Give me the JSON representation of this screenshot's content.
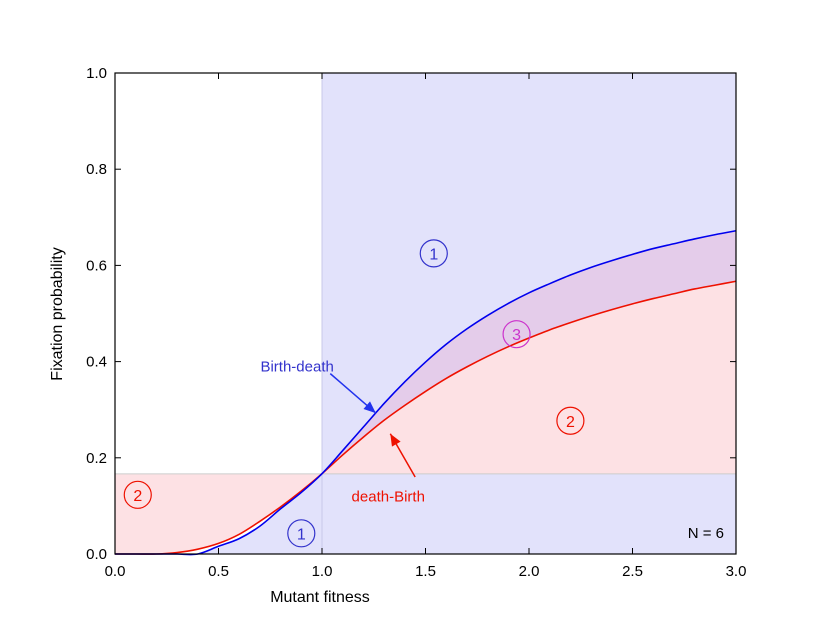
{
  "chart_data": {
    "type": "line",
    "title": "",
    "xlabel": "Mutant fitness",
    "ylabel": "Fixation probability",
    "xlim": [
      0,
      3
    ],
    "ylim": [
      0,
      1
    ],
    "x_ticks": [
      "0.0",
      "0.5",
      "1.0",
      "1.5",
      "2.0",
      "2.5",
      "3.0"
    ],
    "y_ticks": [
      "0.0",
      "0.2",
      "0.4",
      "0.6",
      "0.8",
      "1.0"
    ],
    "population_label": "N = 6",
    "series": [
      {
        "name": "Birth-death",
        "color": "#0000ee",
        "x": [
          0.0,
          0.1,
          0.2,
          0.3,
          0.4,
          0.5,
          0.6,
          0.7,
          0.8,
          0.9,
          1.0,
          1.1,
          1.2,
          1.3,
          1.4,
          1.5,
          1.6,
          1.7,
          1.8,
          1.9,
          2.0,
          2.1,
          2.2,
          2.3,
          2.4,
          2.5,
          2.6,
          2.7,
          2.8,
          2.9,
          3.0
        ],
        "y": [
          0.0,
          0.0,
          0.0,
          0.0,
          0.0,
          0.016,
          0.032,
          0.058,
          0.094,
          0.128,
          0.167,
          0.215,
          0.264,
          0.313,
          0.358,
          0.399,
          0.436,
          0.468,
          0.496,
          0.521,
          0.543,
          0.562,
          0.58,
          0.596,
          0.61,
          0.623,
          0.635,
          0.645,
          0.655,
          0.664,
          0.672
        ]
      },
      {
        "name": "death-Birth",
        "color": "#ee1100",
        "x": [
          0.0,
          0.1,
          0.2,
          0.3,
          0.4,
          0.5,
          0.6,
          0.7,
          0.8,
          0.9,
          1.0,
          1.1,
          1.2,
          1.3,
          1.4,
          1.5,
          1.6,
          1.7,
          1.8,
          1.9,
          2.0,
          2.1,
          2.2,
          2.3,
          2.4,
          2.5,
          2.6,
          2.7,
          2.8,
          2.9,
          3.0
        ],
        "y": [
          0.0,
          0.0,
          0.0,
          0.003,
          0.01,
          0.022,
          0.041,
          0.068,
          0.098,
          0.131,
          0.167,
          0.206,
          0.243,
          0.278,
          0.309,
          0.338,
          0.365,
          0.389,
          0.411,
          0.431,
          0.449,
          0.466,
          0.481,
          0.495,
          0.508,
          0.52,
          0.531,
          0.541,
          0.551,
          0.559,
          0.567
        ]
      }
    ],
    "neutral_level": 0.1667,
    "neutral_fitness": 1.0,
    "annotations": [
      {
        "text": "Birth-death",
        "color": "#3333cc",
        "x": 0.88,
        "y": 0.39
      },
      {
        "text": "death-Birth",
        "color": "#ee1100",
        "x": 1.32,
        "y": 0.12
      }
    ],
    "region_markers": [
      {
        "text": "1",
        "color": "#3333cc",
        "x": 1.54,
        "y": 0.625
      },
      {
        "text": "1",
        "color": "#3333cc",
        "x": 0.9,
        "y": 0.043
      },
      {
        "text": "2",
        "color": "#ee1100",
        "x": 0.11,
        "y": 0.123
      },
      {
        "text": "2",
        "color": "#ee1100",
        "x": 2.2,
        "y": 0.277
      },
      {
        "text": "3",
        "color": "#cc33cc",
        "x": 1.94,
        "y": 0.457
      }
    ],
    "colors": {
      "blue_region": "#e2e2fb",
      "red_region": "#fde1e4",
      "purple_region": "#e4ccea"
    }
  }
}
